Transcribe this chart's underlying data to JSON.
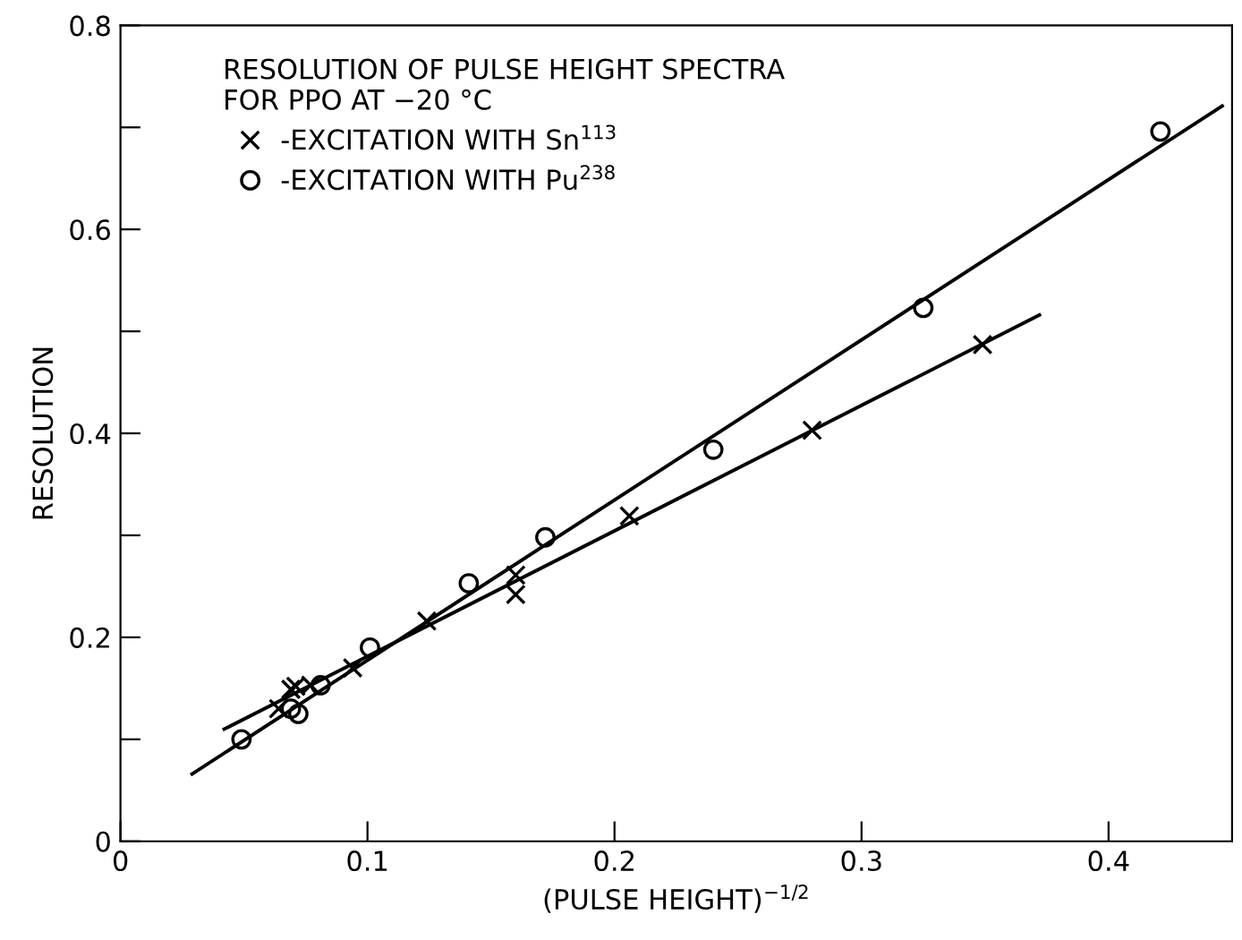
{
  "chart_data": {
    "type": "scatter",
    "xlabel": "(PULSE HEIGHT)$^{−1/2}$",
    "ylabel": "RESOLUTION",
    "legend_title": "RESOLUTION OF PULSE HEIGHT SPECTRA\nFOR PPO AT −20 °C",
    "legend": "top left",
    "grid": false,
    "xlim": [
      0,
      0.45
    ],
    "xticks": [
      0,
      0.1,
      0.2,
      0.3,
      0.4
    ],
    "ylim": [
      0,
      0.8
    ],
    "yticks": [
      0,
      {
        "value": 0.1,
        "label": null
      },
      0.2,
      {
        "value": 0.3,
        "label": null
      },
      0.4,
      {
        "value": 0.5,
        "label": null
      },
      0.6,
      {
        "value": 0.7,
        "label": null
      },
      0.8
    ],
    "series": [
      {
        "name": "-EXCITATION WITH Sn$^{113}$",
        "color": "#000000",
        "marker": "cross",
        "x": [
          0.064,
          0.069,
          0.071,
          0.077,
          0.094,
          0.124,
          0.16,
          0.16,
          0.206,
          0.28,
          0.349
        ],
        "values": [
          0.13,
          0.149,
          0.152,
          0.153,
          0.17,
          0.216,
          0.261,
          0.242,
          0.319,
          0.403,
          0.487
        ]
      },
      {
        "name": "-EXCITATION WITH Pu$^{238}$",
        "color": "#000000",
        "marker": "circle",
        "x": [
          0.049,
          0.069,
          0.072,
          0.081,
          0.101,
          0.141,
          0.172,
          0.24,
          0.325,
          0.421
        ],
        "values": [
          0.1,
          0.13,
          0.125,
          0.153,
          0.19,
          0.253,
          0.298,
          0.384,
          0.523,
          0.696
        ]
      },
      {
        "type": "line",
        "color": "#000000",
        "x": [
          0.042,
          0.372
        ],
        "values": [
          0.11,
          0.516
        ]
      },
      {
        "type": "line",
        "color": "#000000",
        "x": [
          0.029,
          0.446
        ],
        "values": [
          0.066,
          0.721
        ]
      }
    ]
  }
}
